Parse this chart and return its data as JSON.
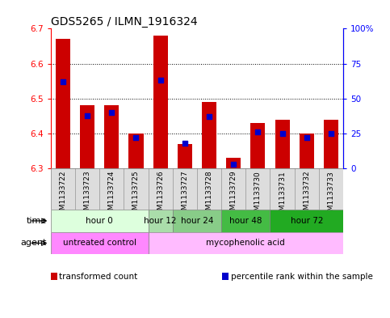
{
  "title": "GDS5265 / ILMN_1916324",
  "samples": [
    "GSM1133722",
    "GSM1133723",
    "GSM1133724",
    "GSM1133725",
    "GSM1133726",
    "GSM1133727",
    "GSM1133728",
    "GSM1133729",
    "GSM1133730",
    "GSM1133731",
    "GSM1133732",
    "GSM1133733"
  ],
  "transformed_count": [
    6.67,
    6.48,
    6.48,
    6.4,
    6.68,
    6.37,
    6.49,
    6.33,
    6.43,
    6.44,
    6.4,
    6.44
  ],
  "percentile_rank": [
    62,
    38,
    40,
    22,
    63,
    18,
    37,
    3,
    26,
    25,
    22,
    25
  ],
  "ymin": 6.3,
  "ymax": 6.7,
  "yticks": [
    6.3,
    6.4,
    6.5,
    6.6,
    6.7
  ],
  "right_yticks": [
    0,
    25,
    50,
    75,
    100
  ],
  "bar_color": "#cc0000",
  "percentile_color": "#0000cc",
  "bar_bottom": 6.3,
  "time_groups": [
    {
      "label": "hour 0",
      "start": 0,
      "end": 4,
      "color": "#ddffdd"
    },
    {
      "label": "hour 12",
      "start": 4,
      "end": 5,
      "color": "#aaddaa"
    },
    {
      "label": "hour 24",
      "start": 5,
      "end": 7,
      "color": "#88cc88"
    },
    {
      "label": "hour 48",
      "start": 7,
      "end": 9,
      "color": "#44bb44"
    },
    {
      "label": "hour 72",
      "start": 9,
      "end": 12,
      "color": "#22aa22"
    }
  ],
  "agent_groups": [
    {
      "label": "untreated control",
      "start": 0,
      "end": 4,
      "color": "#ff88ff"
    },
    {
      "label": "mycophenolic acid",
      "start": 4,
      "end": 12,
      "color": "#ffbbff"
    }
  ],
  "legend_items": [
    {
      "label": "transformed count",
      "color": "#cc0000"
    },
    {
      "label": "percentile rank within the sample",
      "color": "#0000cc"
    }
  ],
  "background_color": "#ffffff",
  "plot_bg_color": "#ffffff",
  "title_fontsize": 10,
  "tick_fontsize": 7.5,
  "sample_fontsize": 6.5,
  "row_fontsize": 7.5,
  "legend_fontsize": 7.5
}
